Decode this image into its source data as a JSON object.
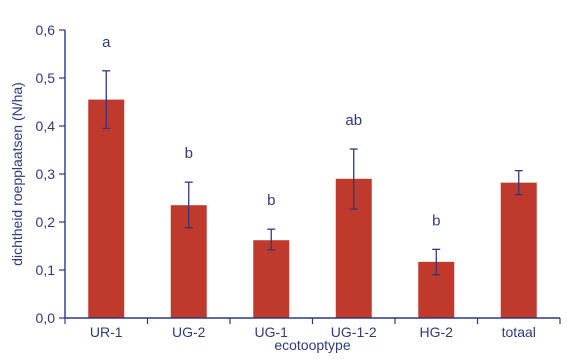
{
  "chart_data": {
    "type": "bar",
    "title": "",
    "xlabel": "ecotooptype",
    "ylabel": "dichtheid roepplaatsen  (N/ha)",
    "ylim": [
      0,
      0.6
    ],
    "yticks": [
      "0,0",
      "0,1",
      "0,2",
      "0,3",
      "0,4",
      "0,5",
      "0,6"
    ],
    "grid": false,
    "legend": "none",
    "categories": [
      "UR-1",
      "UG-2",
      "UG-1",
      "UG-1-2",
      "HG-2",
      "totaal"
    ],
    "series": [
      {
        "values": [
          0.455,
          0.235,
          0.162,
          0.29,
          0.117,
          0.282
        ],
        "error_low": [
          0.395,
          0.188,
          0.142,
          0.227,
          0.09,
          0.257
        ],
        "error_high": [
          0.515,
          0.283,
          0.185,
          0.352,
          0.143,
          0.307
        ]
      }
    ],
    "annotations": [
      "a",
      "b",
      "b",
      "ab",
      "b",
      ""
    ],
    "colors": {
      "bar": "#bf3a2d",
      "axis": "#2e3a7a",
      "plot_background": "#ffffff"
    }
  }
}
